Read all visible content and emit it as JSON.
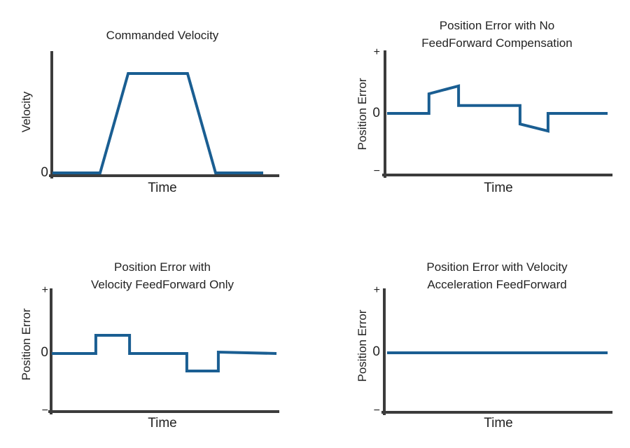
{
  "colors": {
    "line": "#1A5E92",
    "axis": "#3C3C3C",
    "text": "#232323",
    "background": "#FFFFFF"
  },
  "chart_data": [
    {
      "id": "commanded-velocity",
      "type": "line",
      "title_lines": [
        "Commanded Velocity"
      ],
      "xlabel": "Time",
      "ylabel": "Velocity",
      "yticks": {
        "zero": "0"
      },
      "x_range": [
        0,
        10
      ],
      "y_range": [
        0,
        1.2
      ],
      "grid": false,
      "legend": false,
      "series": [
        {
          "name": "commanded-velocity-trapezoid",
          "x": [
            0,
            2.26,
            3.59,
            6.41,
            7.74,
            10
          ],
          "y": [
            0,
            0,
            1,
            1,
            0,
            0
          ]
        }
      ]
    },
    {
      "id": "position-error-no-feedforward",
      "type": "line",
      "title_lines": [
        "Position Error with No",
        "FeedForward Compensation"
      ],
      "xlabel": "Time",
      "ylabel": "Position Error",
      "yticks": {
        "plus": "+",
        "zero": "0",
        "minus": "−"
      },
      "x_range": [
        0,
        10
      ],
      "y_range": [
        -2.2,
        2.2
      ],
      "grid": false,
      "legend": false,
      "series": [
        {
          "name": "position-error-no-ff",
          "x": [
            0,
            1.9,
            1.9,
            3.24,
            3.24,
            6.03,
            6.03,
            7.3,
            7.3,
            10
          ],
          "y": [
            0,
            0,
            0.7,
            0.98,
            0.28,
            0.28,
            -0.38,
            -0.63,
            0,
            0
          ]
        }
      ]
    },
    {
      "id": "position-error-velocity-feedforward-only",
      "type": "line",
      "title_lines": [
        "Position Error with",
        "Velocity FeedForward Only"
      ],
      "xlabel": "Time",
      "ylabel": "Position Error",
      "yticks": {
        "plus": "+",
        "zero": "0",
        "minus": "−"
      },
      "x_range": [
        0,
        10
      ],
      "y_range": [
        -2.2,
        2.2
      ],
      "grid": false,
      "legend": false,
      "series": [
        {
          "name": "position-error-vel-ff",
          "x": [
            0,
            1.96,
            1.96,
            3.46,
            3.46,
            6.01,
            6.01,
            7.41,
            7.41,
            10
          ],
          "y": [
            0,
            0,
            0.65,
            0.65,
            0,
            0,
            -0.625,
            -0.625,
            0.05,
            0
          ]
        }
      ]
    },
    {
      "id": "position-error-velocity-acceleration-feedforward",
      "type": "line",
      "title_lines": [
        "Position Error with Velocity",
        "Acceleration FeedForward"
      ],
      "xlabel": "Time",
      "ylabel": "Position Error",
      "yticks": {
        "plus": "+",
        "zero": "0",
        "minus": "−"
      },
      "x_range": [
        0,
        10
      ],
      "y_range": [
        -2.2,
        2.2
      ],
      "grid": false,
      "legend": false,
      "series": [
        {
          "name": "position-error-vel-acc-ff",
          "x": [
            0,
            10
          ],
          "y": [
            0,
            0
          ]
        }
      ]
    }
  ]
}
